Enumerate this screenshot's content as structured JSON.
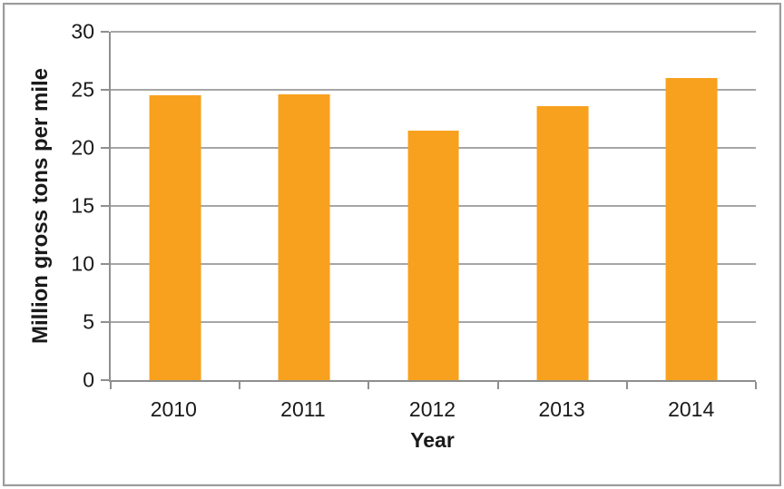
{
  "chart_data": {
    "type": "bar",
    "title": "",
    "categories": [
      "2010",
      "2011",
      "2012",
      "2013",
      "2014"
    ],
    "values": [
      24.5,
      24.6,
      21.5,
      23.6,
      26.0
    ],
    "xlabel": "Year",
    "ylabel": "Million gross tons per mile",
    "ylim": [
      0,
      30
    ],
    "yticks": [
      0,
      5,
      10,
      15,
      20,
      25,
      30
    ],
    "grid": true,
    "legend": false,
    "bar_color": "#F8A11E"
  },
  "colors": {
    "bar": "#F8A11E",
    "gridline": "#A6A6A6",
    "axis": "#8F8F8F",
    "text": "#1A1A1A",
    "frame_border": "#9C9C9C",
    "background": "#FFFFFF"
  }
}
